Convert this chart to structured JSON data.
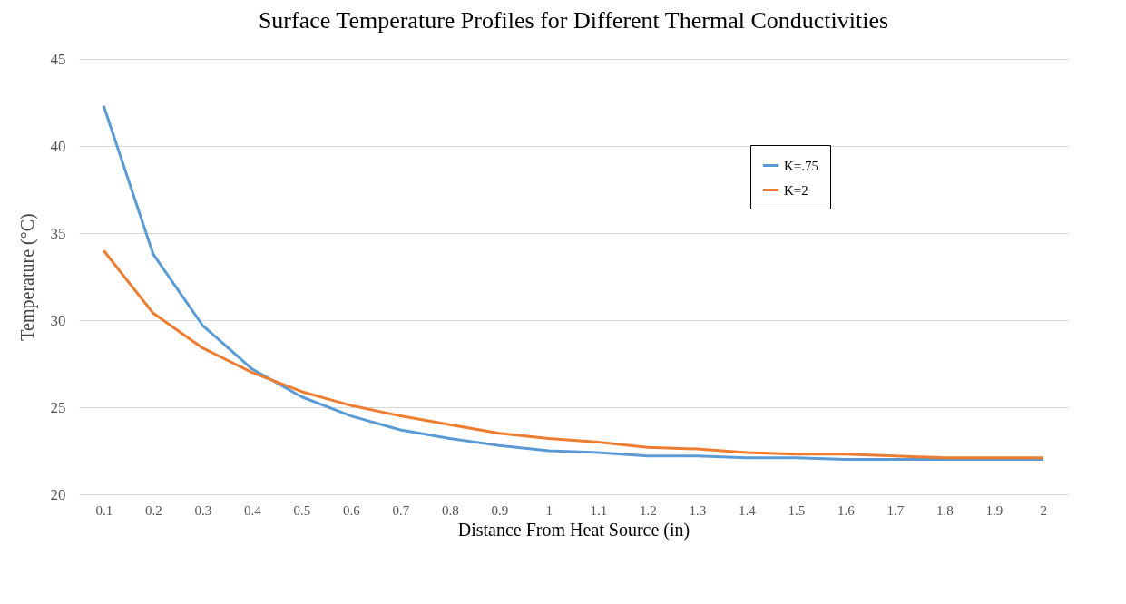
{
  "chart_data": {
    "type": "line",
    "title": "Surface Temperature Profiles for Different Thermal Conductivities",
    "xlabel": "Distance  From Heat Source (in)",
    "ylabel": "Temperature (°C)",
    "categories": [
      "0.1",
      "0.2",
      "0.3",
      "0.4",
      "0.5",
      "0.6",
      "0.7",
      "0.8",
      "0.9",
      "1",
      "1.1",
      "1.2",
      "1.3",
      "1.4",
      "1.5",
      "1.6",
      "1.7",
      "1.8",
      "1.9",
      "2"
    ],
    "series": [
      {
        "name": "K=.75",
        "color": "#5b9bd5",
        "values": [
          42.3,
          33.8,
          29.7,
          27.2,
          25.6,
          24.5,
          23.7,
          23.2,
          22.8,
          22.5,
          22.4,
          22.2,
          22.2,
          22.1,
          22.1,
          22.0,
          22.0,
          22.0,
          22.0,
          22.0
        ]
      },
      {
        "name": "K=2",
        "color": "#ed7d31",
        "values": [
          34.0,
          30.4,
          28.4,
          27.0,
          25.9,
          25.1,
          24.5,
          24.0,
          23.5,
          23.2,
          23.0,
          22.7,
          22.6,
          22.4,
          22.3,
          22.3,
          22.2,
          22.1,
          22.1,
          22.1
        ]
      }
    ],
    "ylim": [
      20,
      45
    ],
    "yticks": [
      20,
      25,
      30,
      35,
      40,
      45
    ],
    "grid": "y",
    "legend": "top right",
    "marker": "none",
    "line_style": "solid"
  }
}
